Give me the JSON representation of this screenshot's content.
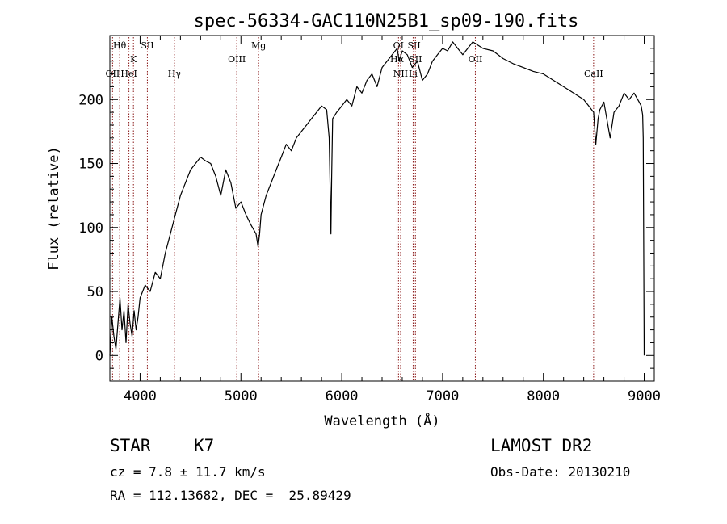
{
  "chart_data": {
    "type": "line",
    "title": "spec-56334-GAC110N25B1_sp09-190.fits",
    "xlabel": "Wavelength (Å)",
    "ylabel": "Flux (relative)",
    "xlim": [
      3700,
      9100
    ],
    "ylim": [
      -20,
      250
    ],
    "xticks": [
      4000,
      5000,
      6000,
      7000,
      8000,
      9000
    ],
    "yticks": [
      0,
      50,
      100,
      150,
      200
    ],
    "grid": false,
    "line_color": "#000000",
    "marker_color": "#8b1a1a",
    "spectrum": {
      "x": [
        3700,
        3720,
        3740,
        3760,
        3780,
        3800,
        3820,
        3840,
        3860,
        3880,
        3900,
        3920,
        3940,
        3960,
        3980,
        4000,
        4050,
        4100,
        4150,
        4200,
        4250,
        4300,
        4350,
        4400,
        4450,
        4500,
        4550,
        4600,
        4650,
        4700,
        4750,
        4800,
        4850,
        4900,
        4950,
        5000,
        5050,
        5100,
        5150,
        5170,
        5185,
        5200,
        5250,
        5300,
        5350,
        5400,
        5450,
        5500,
        5550,
        5600,
        5650,
        5700,
        5750,
        5800,
        5850,
        5875,
        5885,
        5893,
        5900,
        5910,
        5950,
        6000,
        6050,
        6100,
        6150,
        6200,
        6250,
        6300,
        6350,
        6400,
        6450,
        6500,
        6550,
        6570,
        6600,
        6650,
        6700,
        6750,
        6800,
        6850,
        6900,
        6950,
        7000,
        7050,
        7100,
        7150,
        7200,
        7300,
        7400,
        7500,
        7600,
        7700,
        7800,
        7900,
        8000,
        8100,
        8200,
        8300,
        8400,
        8450,
        8498,
        8520,
        8542,
        8560,
        8600,
        8662,
        8700,
        8750,
        8800,
        8850,
        8900,
        8950,
        8970,
        8985,
        8990,
        9000
      ],
      "y": [
        0,
        30,
        15,
        5,
        25,
        45,
        20,
        35,
        10,
        40,
        25,
        15,
        35,
        20,
        30,
        45,
        55,
        50,
        65,
        60,
        80,
        95,
        110,
        125,
        135,
        145,
        150,
        155,
        152,
        150,
        140,
        125,
        145,
        135,
        115,
        120,
        110,
        102,
        95,
        85,
        95,
        110,
        125,
        135,
        145,
        155,
        165,
        160,
        170,
        175,
        180,
        185,
        190,
        195,
        192,
        170,
        130,
        95,
        140,
        185,
        190,
        195,
        200,
        195,
        210,
        205,
        215,
        220,
        210,
        225,
        230,
        235,
        240,
        230,
        238,
        235,
        225,
        230,
        215,
        220,
        230,
        235,
        240,
        238,
        245,
        240,
        235,
        245,
        240,
        238,
        232,
        228,
        225,
        222,
        220,
        215,
        210,
        205,
        200,
        195,
        190,
        165,
        185,
        192,
        198,
        170,
        190,
        195,
        205,
        200,
        205,
        198,
        195,
        188,
        170,
        0
      ]
    },
    "lines": [
      {
        "label": "Hθ",
        "x": 3797,
        "row": 1
      },
      {
        "label": "OII",
        "x": 3727,
        "row": 3
      },
      {
        "label": "K",
        "x": 3934,
        "row": 2
      },
      {
        "label": "HeI",
        "x": 3889,
        "row": 3
      },
      {
        "label": "SII",
        "x": 4072,
        "row": 1
      },
      {
        "label": "Hγ",
        "x": 4340,
        "row": 3
      },
      {
        "label": "OIII",
        "x": 4959,
        "row": 2
      },
      {
        "label": "Mg",
        "x": 5175,
        "row": 1
      },
      {
        "label": "OI",
        "x": 6563,
        "row": 1
      },
      {
        "label": "SII",
        "x": 6717,
        "row": 1
      },
      {
        "label": "Hα",
        "x": 6548,
        "row": 2
      },
      {
        "label": "SII",
        "x": 6731,
        "row": 2
      },
      {
        "label": "NII",
        "x": 6584,
        "row": 3
      },
      {
        "label": "Li",
        "x": 6708,
        "row": 3
      },
      {
        "label": "OII",
        "x": 7325,
        "row": 2
      },
      {
        "label": "CaII",
        "x": 8498,
        "row": 3
      }
    ]
  },
  "footer": {
    "class_label": "STAR",
    "subclass": "K7",
    "cz": "cz = 7.8 ± 11.7 km/s",
    "coords": "RA = 112.13682, DEC =  25.89429",
    "survey": "LAMOST DR2",
    "obs_date": "Obs-Date: 20130210"
  }
}
